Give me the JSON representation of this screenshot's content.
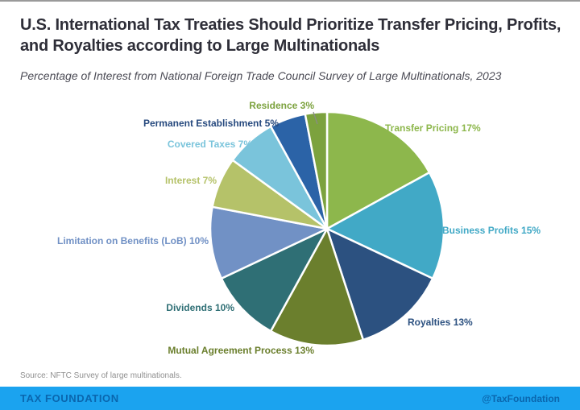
{
  "header": {
    "title_line1": "U.S. International Tax Treaties Should Prioritize Transfer Pricing, Profits,",
    "title_line2": "and Royalties according to Large Multinationals",
    "subtitle": "Percentage of Interest from National Foreign Trade Council Survey of Large Multinationals, 2023"
  },
  "chart_data": {
    "type": "pie",
    "title": "U.S. International Tax Treaties Should Prioritize Transfer Pricing, Profits, and Royalties according to Large Multinationals",
    "subtitle": "Percentage of Interest from National Foreign Trade Council Survey of Large Multinationals, 2023",
    "units": "%",
    "start_angle": "top, clockwise",
    "label_format": "{label} {value}%",
    "slices": [
      {
        "label": "Transfer Pricing",
        "value": 17,
        "color": "#8DB74C"
      },
      {
        "label": "Business Profits",
        "value": 15,
        "color": "#41A9C6"
      },
      {
        "label": "Royalties",
        "value": 13,
        "color": "#2C5180"
      },
      {
        "label": "Mutual Agreement Process",
        "value": 13,
        "color": "#6B7F2D"
      },
      {
        "label": "Dividends",
        "value": 10,
        "color": "#2F6F75"
      },
      {
        "label": "Limitation on Benefits (LoB)",
        "value": 10,
        "color": "#7191C5"
      },
      {
        "label": "Interest",
        "value": 7,
        "color": "#B5C269"
      },
      {
        "label": "Covered Taxes",
        "value": 7,
        "color": "#7AC4DB"
      },
      {
        "label": "Permanent Establishment",
        "value": 5,
        "color": "#2B63A7",
        "label_color": "#26497E"
      },
      {
        "label": "Residence",
        "value": 3,
        "color": "#7CA23E"
      }
    ]
  },
  "footer": {
    "source": "Source: NFTC Survey of large multinationals.",
    "brand": "TAX FOUNDATION",
    "handle": "@TaxFoundation",
    "bar_color": "#1BA3EF",
    "bar_text_color": "#0A66AE"
  }
}
